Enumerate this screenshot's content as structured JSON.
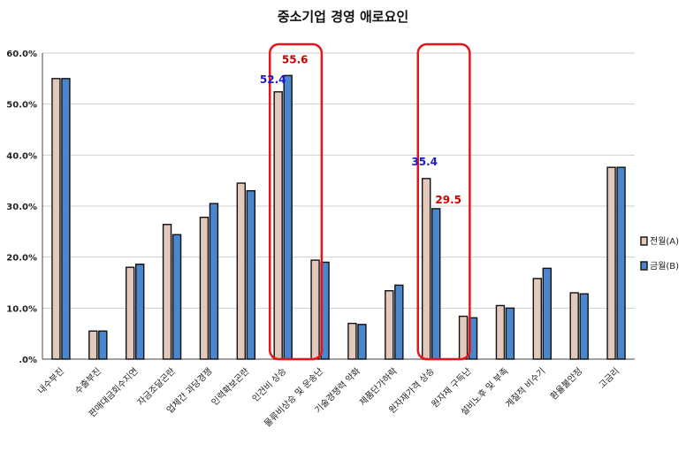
{
  "chart_data": {
    "type": "bar",
    "title": "중소기업 경영 애로요인",
    "xlabel": "",
    "ylabel": "",
    "ylim": [
      0,
      60
    ],
    "yticks": [
      ".0%",
      "10.0%",
      "20.0%",
      "30.0%",
      "40.0%",
      "50.0%",
      "60.0%"
    ],
    "grid": true,
    "legend_position": "right",
    "categories": [
      "내수부진",
      "수출부진",
      "판매대금회수지연",
      "자금조달곤란",
      "업체간 과당경쟁",
      "인력확보곤란",
      "인건비 상승",
      "물류비상승 및 운송난",
      "기술경쟁력 약화",
      "제품단가하락",
      "원자재가격 상승",
      "원자재 구득난",
      "설비노후 및 부족",
      "계절적 비수기",
      "환율불안정",
      "고금리"
    ],
    "series": [
      {
        "name": "전월(A)",
        "color": "#e3c9bb",
        "values": [
          55.0,
          5.5,
          18.0,
          26.4,
          27.8,
          34.5,
          52.4,
          19.4,
          7.0,
          13.4,
          35.4,
          8.4,
          10.5,
          15.8,
          13.0,
          37.6
        ]
      },
      {
        "name": "금월(B)",
        "color": "#4a86cc",
        "values": [
          55.0,
          5.5,
          18.6,
          24.4,
          30.5,
          33.0,
          55.6,
          19.0,
          6.8,
          14.5,
          29.5,
          8.1,
          10.0,
          17.8,
          12.8,
          37.6
        ]
      }
    ],
    "annotations": [
      {
        "text": "52.4",
        "category_index": 6,
        "series_index": 0,
        "color": "#1a1acc"
      },
      {
        "text": "55.6",
        "category_index": 6,
        "series_index": 1,
        "color": "#cc0000"
      },
      {
        "text": "35.4",
        "category_index": 10,
        "series_index": 0,
        "color": "#1a1acc"
      },
      {
        "text": "29.5",
        "category_index": 10,
        "series_index": 1,
        "color": "#cc0000"
      }
    ],
    "highlight_boxes": [
      6,
      10
    ],
    "highlight_color": "#e8141c"
  }
}
